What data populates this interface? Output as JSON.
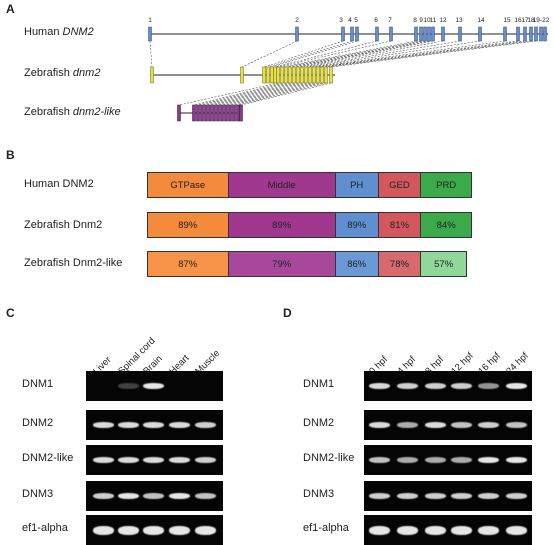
{
  "panelA": {
    "label": "A",
    "rows": [
      {
        "prefix": "Human ",
        "gene": "DNM2"
      },
      {
        "prefix": "Zebrafish ",
        "gene": "dnm2"
      },
      {
        "prefix": "Zebrafish ",
        "gene": "dnm2-like"
      }
    ],
    "exon_numbers": [
      "1",
      "2",
      "3",
      "4",
      "5",
      "6",
      "7",
      "8",
      "9",
      "10",
      "11",
      "12",
      "13",
      "14",
      "15",
      "16",
      "17",
      "18",
      "19-22"
    ],
    "colors": {
      "human": "#6b8cc7",
      "dnm2": "#e6e04a",
      "dnm2like": "#8a3a8a"
    }
  },
  "panelB": {
    "label": "B",
    "rows": [
      {
        "name": "Human DNM2",
        "domains": [
          "GTPase",
          "Middle",
          "PH",
          "GED",
          "PRD"
        ]
      },
      {
        "name": "Zebrafish Dnm2",
        "domains": [
          "89%",
          "89%",
          "89%",
          "81%",
          "84%"
        ]
      },
      {
        "name": "Zebrafish Dnm2-like",
        "domains": [
          "87%",
          "79%",
          "86%",
          "78%",
          "57%"
        ]
      }
    ],
    "colors": [
      "#f48a3c",
      "#a0388f",
      "#5f8fce",
      "#d2585e",
      "#3aaa4a"
    ],
    "colors_light": [
      "#f7944a",
      "#a8489a",
      "#6a9ad6",
      "#d76a6e",
      "#7fd090"
    ]
  },
  "panelC": {
    "label": "C",
    "lanes": [
      "Liver",
      "Spinal cord",
      "Brain",
      "Heart",
      "Muscle"
    ],
    "genes": [
      "DNM1",
      "DNM2",
      "DNM2-like",
      "DNM3",
      "ef1-alpha"
    ]
  },
  "panelD": {
    "label": "D",
    "lanes": [
      "0 hpf",
      "4 hpf",
      "8 hpf",
      "12 hpf",
      "16 hpf",
      "24 hpf"
    ],
    "genes": [
      "DNM1",
      "DNM2",
      "DNM2-like",
      "DNM3",
      "ef1-alpha"
    ]
  }
}
